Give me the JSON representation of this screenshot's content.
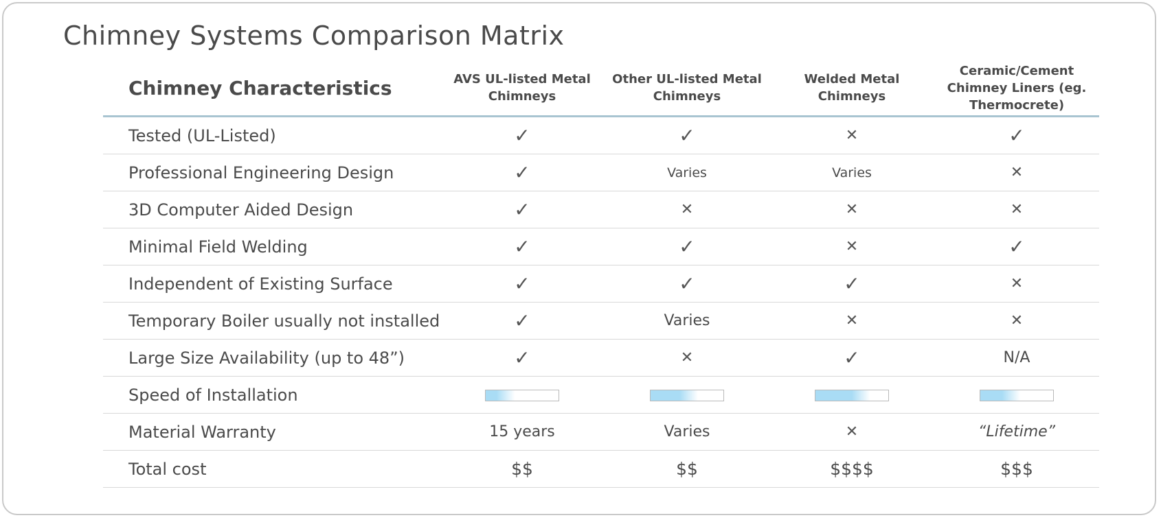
{
  "title": "Chimney Systems Comparison Matrix",
  "table": {
    "header": {
      "label": "Chimney Characteristics",
      "columns": [
        "AVS UL-listed Metal Chimneys",
        "Other UL-listed Metal Chimneys",
        "Welded Metal Chimneys",
        "Ceramic/Cement Chimney Liners (eg. Thermocrete)"
      ]
    },
    "rows": [
      {
        "label": "Tested (UL-Listed)",
        "cells": [
          {
            "kind": "check",
            "glyph": "✓"
          },
          {
            "kind": "check",
            "glyph": "✓"
          },
          {
            "kind": "cross",
            "glyph": "✕"
          },
          {
            "kind": "check",
            "glyph": "✓"
          }
        ]
      },
      {
        "label": "Professional Engineering Design",
        "cells": [
          {
            "kind": "check",
            "glyph": "✓"
          },
          {
            "kind": "text",
            "size": "sm",
            "text": "Varies"
          },
          {
            "kind": "text",
            "size": "sm",
            "text": "Varies"
          },
          {
            "kind": "cross",
            "glyph": "✕"
          }
        ]
      },
      {
        "label": "3D Computer Aided Design",
        "cells": [
          {
            "kind": "check",
            "glyph": "✓"
          },
          {
            "kind": "cross",
            "glyph": "✕"
          },
          {
            "kind": "cross",
            "glyph": "✕"
          },
          {
            "kind": "cross",
            "glyph": "✕"
          }
        ]
      },
      {
        "label": "Minimal Field Welding",
        "cells": [
          {
            "kind": "check",
            "glyph": "✓"
          },
          {
            "kind": "check",
            "glyph": "✓"
          },
          {
            "kind": "cross",
            "glyph": "✕"
          },
          {
            "kind": "check",
            "glyph": "✓"
          }
        ]
      },
      {
        "label": "Independent of Existing Surface",
        "cells": [
          {
            "kind": "check",
            "glyph": "✓"
          },
          {
            "kind": "check",
            "glyph": "✓"
          },
          {
            "kind": "check",
            "glyph": "✓"
          },
          {
            "kind": "cross",
            "glyph": "✕"
          }
        ]
      },
      {
        "label": "Temporary Boiler usually not installed",
        "cells": [
          {
            "kind": "check",
            "glyph": "✓"
          },
          {
            "kind": "text",
            "size": "md",
            "text": "Varies"
          },
          {
            "kind": "cross",
            "glyph": "✕"
          },
          {
            "kind": "cross",
            "glyph": "✕"
          }
        ]
      },
      {
        "label": "Large Size Availability (up to 48”)",
        "cells": [
          {
            "kind": "check",
            "glyph": "✓"
          },
          {
            "kind": "cross",
            "glyph": "✕"
          },
          {
            "kind": "check",
            "glyph": "✓"
          },
          {
            "kind": "text",
            "size": "md",
            "text": "N/A"
          }
        ]
      },
      {
        "label": "Speed of Installation",
        "cells": [
          {
            "kind": "bar",
            "level": 0.4
          },
          {
            "kind": "bar",
            "level": 0.65
          },
          {
            "kind": "bar",
            "level": 0.75
          },
          {
            "kind": "bar",
            "level": 0.55
          }
        ]
      },
      {
        "label": "Material Warranty",
        "cells": [
          {
            "kind": "text",
            "size": "md",
            "text": "15 years"
          },
          {
            "kind": "text",
            "size": "md",
            "text": "Varies"
          },
          {
            "kind": "cross",
            "glyph": "✕"
          },
          {
            "kind": "text",
            "size": "it",
            "text": "“Lifetime”"
          }
        ]
      },
      {
        "label": "Total cost",
        "cells": [
          {
            "kind": "text",
            "size": "lg",
            "text": "$$"
          },
          {
            "kind": "text",
            "size": "lg",
            "text": "$$"
          },
          {
            "kind": "text",
            "size": "lg",
            "text": "$$$$"
          },
          {
            "kind": "text",
            "size": "lg",
            "text": "$$$"
          }
        ]
      }
    ]
  },
  "colors": {
    "text": "#4a4a4a",
    "header_rule": "#a8c4d1",
    "row_rule": "#d8d8d8",
    "bar_fill": "#a9dcf5",
    "bar_border": "#b9b9b9",
    "card_border": "#c9c9c9"
  }
}
